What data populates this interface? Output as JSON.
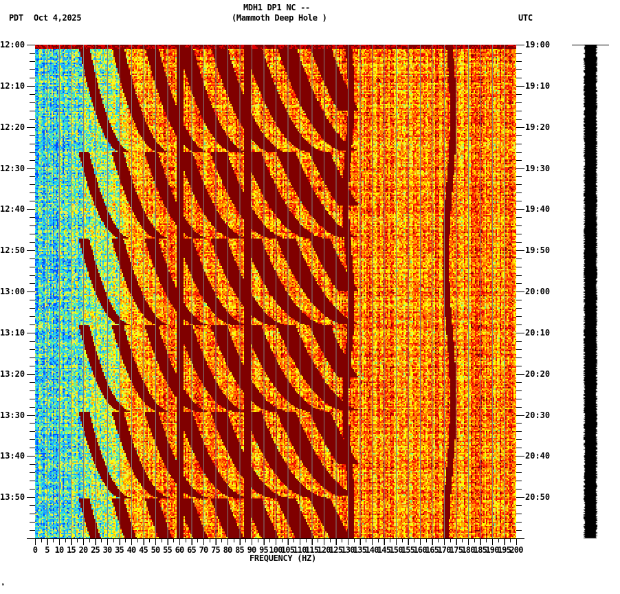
{
  "header": {
    "station_line": "MDH1 DP1 NC --",
    "location_line": "(Mammoth Deep Hole )",
    "left_tz": "PDT",
    "date": "Oct 4,2025",
    "right_tz": "UTC"
  },
  "footer": {
    "corner_mark": "ᴺ"
  },
  "colors": {
    "background": "#ffffff",
    "axis": "#000000",
    "grid": "#808080",
    "colormap": [
      "#0050ff",
      "#1ea0ff",
      "#22d3f0",
      "#70f090",
      "#e8f050",
      "#ffff00",
      "#ffb000",
      "#ff7000",
      "#ff2000",
      "#e00000",
      "#800000"
    ]
  },
  "chart_data": {
    "type": "heatmap",
    "title": "MDH1 DP1 NC -- (Mammoth Deep Hole )",
    "subtitle": "Oct 4,2025",
    "xlabel": "FREQUENCY (HZ)",
    "ylabel_left": "PDT",
    "ylabel_right": "UTC",
    "xlim": [
      0,
      200
    ],
    "x_ticks": [
      "0",
      "5",
      "10",
      "15",
      "20",
      "25",
      "30",
      "35",
      "40",
      "45",
      "50",
      "55",
      "60",
      "65",
      "70",
      "75",
      "80",
      "85",
      "90",
      "95",
      "100",
      "105",
      "110",
      "115",
      "120",
      "125",
      "130",
      "135",
      "140",
      "145",
      "150",
      "155",
      "160",
      "165",
      "170",
      "175",
      "180",
      "185",
      "190",
      "195",
      "200"
    ],
    "x_tick_step": 5,
    "y_ticks_left": [
      "12:00",
      "12:10",
      "12:20",
      "12:30",
      "12:40",
      "12:50",
      "13:00",
      "13:10",
      "13:20",
      "13:30",
      "13:40",
      "13:50"
    ],
    "y_ticks_right": [
      "19:00",
      "19:10",
      "19:20",
      "19:30",
      "19:40",
      "19:50",
      "20:00",
      "20:10",
      "20:20",
      "20:30",
      "20:40",
      "20:50"
    ],
    "y_range_minutes": 120,
    "minor_tick_minutes": 2,
    "grid": "vertical lines every 5 Hz",
    "features": {
      "low_freq_band": {
        "from_hz": 0,
        "to_hz": 35,
        "level": "low (blue/cyan)"
      },
      "high_band_level": "moderate-high (yellow/orange/red)",
      "constant_lines_hz": [
        60,
        88,
        130,
        172
      ],
      "sweep_start_minutes": [
        0,
        26,
        47,
        68,
        89,
        110
      ],
      "sweep_start_hz": 20,
      "sweep_description": "repeating curved harmonic chirps rising from ~20 Hz toward ~130 Hz, restarting every ~21 min"
    }
  },
  "side_trace": {
    "label": "amplitude trace",
    "color": "#000000"
  }
}
